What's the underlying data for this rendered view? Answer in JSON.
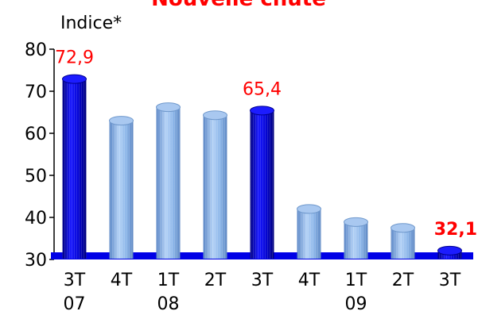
{
  "chart_data": {
    "type": "bar",
    "title": "Nouvelle chute",
    "ylabel": "Indice*",
    "ylim": [
      30,
      80
    ],
    "yticks": [
      30,
      40,
      50,
      60,
      70,
      80
    ],
    "categories": [
      {
        "quarter": "3T",
        "year": "07"
      },
      {
        "quarter": "4T",
        "year": ""
      },
      {
        "quarter": "1T",
        "year": "08"
      },
      {
        "quarter": "2T",
        "year": ""
      },
      {
        "quarter": "3T",
        "year": ""
      },
      {
        "quarter": "4T",
        "year": ""
      },
      {
        "quarter": "1T",
        "year": "09"
      },
      {
        "quarter": "2T",
        "year": ""
      },
      {
        "quarter": "3T",
        "year": ""
      }
    ],
    "values": [
      72.9,
      63.0,
      66.2,
      64.3,
      65.4,
      42.0,
      38.9,
      37.5,
      32.1
    ],
    "highlighted": [
      0,
      4,
      8
    ],
    "data_labels": [
      {
        "index": 0,
        "text": "72,9",
        "bold": false
      },
      {
        "index": 4,
        "text": "65,4",
        "bold": false
      },
      {
        "index": 8,
        "text": "32,1",
        "bold": true
      }
    ],
    "colors": {
      "highlight": "#0a0ad0",
      "normal": "#8db8ec",
      "base": "#0000e6",
      "label": "#ff0000"
    }
  }
}
